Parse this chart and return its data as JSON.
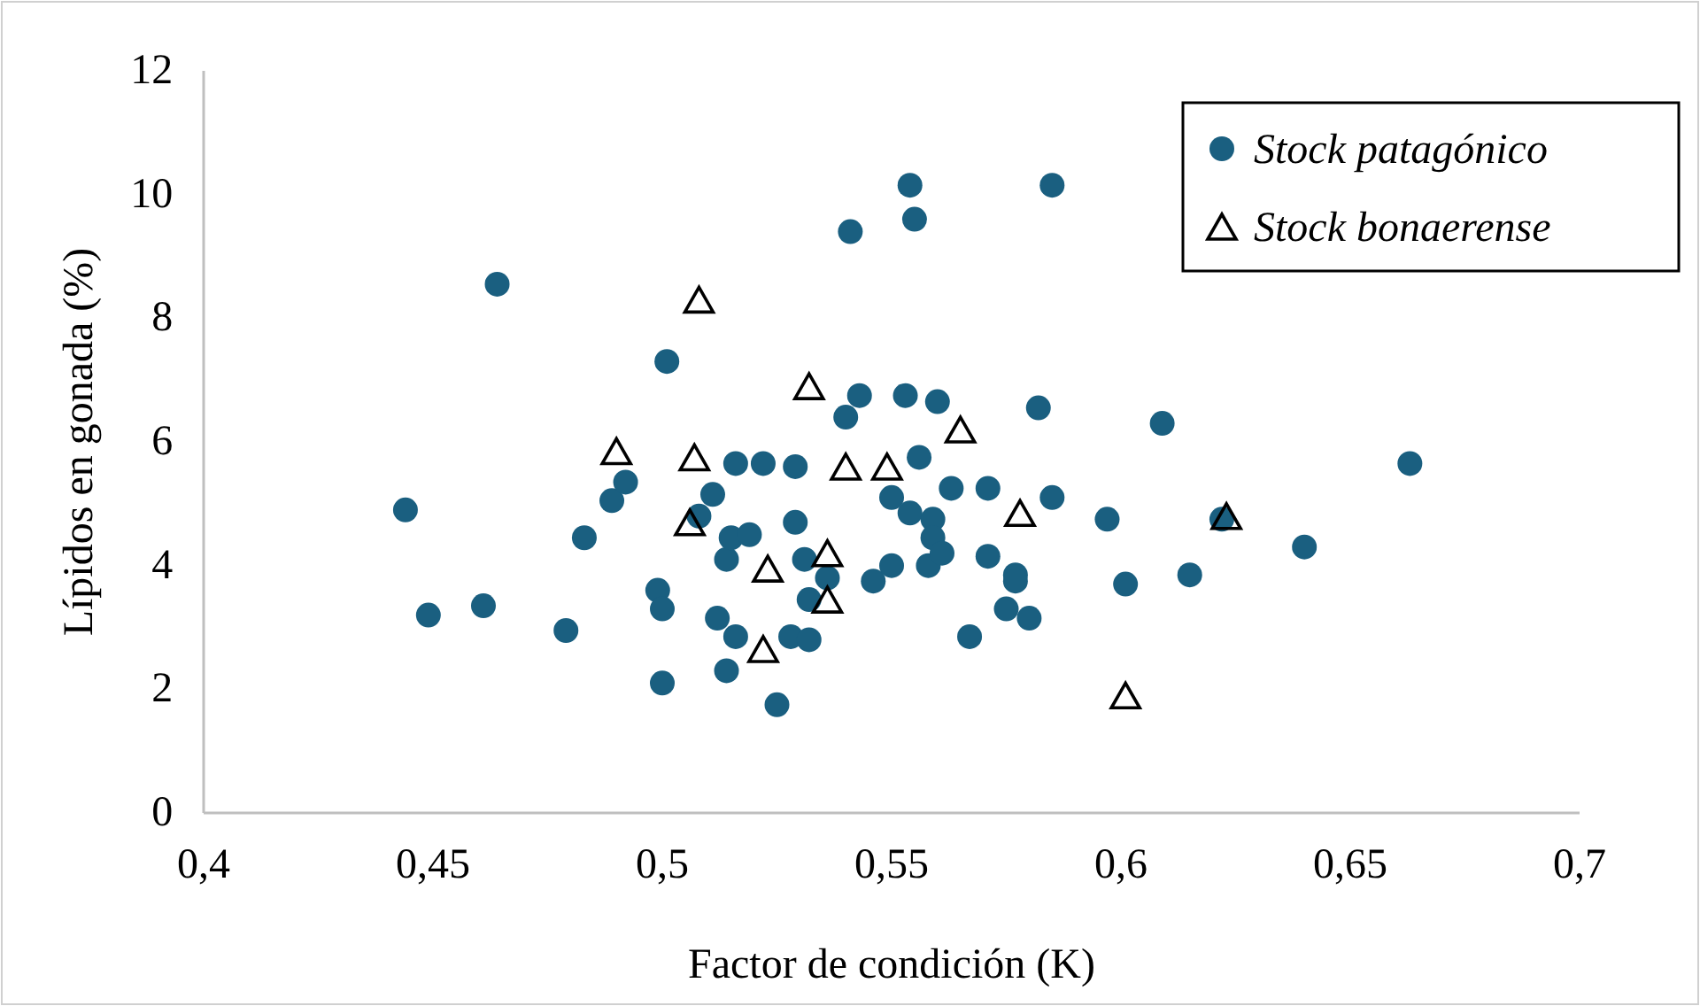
{
  "chart_data": {
    "type": "scatter",
    "xlabel": "Factor de condición (K)",
    "ylabel": "Lípidos en gonada  (%)",
    "xlim": [
      0.4,
      0.7
    ],
    "ylim": [
      0,
      12
    ],
    "xticks": [
      {
        "value": 0.4,
        "label": "0,4"
      },
      {
        "value": 0.45,
        "label": "0,45"
      },
      {
        "value": 0.5,
        "label": "0,5"
      },
      {
        "value": 0.55,
        "label": "0,55"
      },
      {
        "value": 0.6,
        "label": "0,6"
      },
      {
        "value": 0.65,
        "label": "0,65"
      },
      {
        "value": 0.7,
        "label": "0,7"
      }
    ],
    "yticks": [
      0,
      2,
      4,
      6,
      8,
      10,
      12
    ],
    "grid": false,
    "legend": "top right",
    "series": [
      {
        "name": "Stock patagónico",
        "color": "#1a5f80",
        "marker": "circle",
        "x": [
          0.464,
          0.501,
          0.444,
          0.449,
          0.461,
          0.479,
          0.483,
          0.489,
          0.492,
          0.499,
          0.5,
          0.5,
          0.511,
          0.508,
          0.512,
          0.514,
          0.514,
          0.516,
          0.515,
          0.519,
          0.516,
          0.522,
          0.525,
          0.528,
          0.529,
          0.529,
          0.532,
          0.532,
          0.531,
          0.536,
          0.54,
          0.541,
          0.543,
          0.546,
          0.55,
          0.55,
          0.553,
          0.554,
          0.554,
          0.555,
          0.556,
          0.558,
          0.559,
          0.559,
          0.56,
          0.561,
          0.563,
          0.567,
          0.571,
          0.571,
          0.575,
          0.577,
          0.577,
          0.58,
          0.582,
          0.585,
          0.585,
          0.597,
          0.601,
          0.609,
          0.615,
          0.622,
          0.64,
          0.663
        ],
        "values": [
          8.55,
          7.3,
          4.9,
          3.2,
          3.35,
          2.95,
          4.45,
          5.05,
          5.35,
          3.6,
          3.3,
          2.1,
          5.15,
          4.8,
          3.15,
          4.1,
          2.3,
          5.65,
          4.45,
          4.5,
          2.85,
          5.65,
          1.75,
          2.85,
          4.7,
          5.6,
          2.8,
          3.45,
          4.1,
          3.8,
          6.4,
          9.4,
          6.75,
          3.75,
          5.1,
          4.0,
          6.75,
          10.15,
          4.85,
          9.6,
          5.75,
          4.0,
          4.75,
          4.45,
          6.65,
          4.2,
          5.25,
          2.85,
          5.25,
          4.15,
          3.3,
          3.85,
          3.75,
          3.15,
          6.55,
          10.15,
          5.1,
          4.75,
          3.7,
          6.3,
          3.85,
          4.75,
          4.3,
          5.65
        ]
      },
      {
        "name": "Stock bonaerense",
        "color": "#000000",
        "marker": "triangle",
        "x": [
          0.49,
          0.508,
          0.507,
          0.506,
          0.532,
          0.565,
          0.54,
          0.549,
          0.578,
          0.536,
          0.536,
          0.523,
          0.522,
          0.601,
          0.623
        ],
        "values": [
          5.85,
          8.3,
          5.75,
          4.7,
          6.9,
          6.2,
          5.6,
          5.6,
          4.85,
          4.2,
          3.45,
          3.95,
          2.65,
          1.9,
          4.8
        ]
      }
    ]
  }
}
